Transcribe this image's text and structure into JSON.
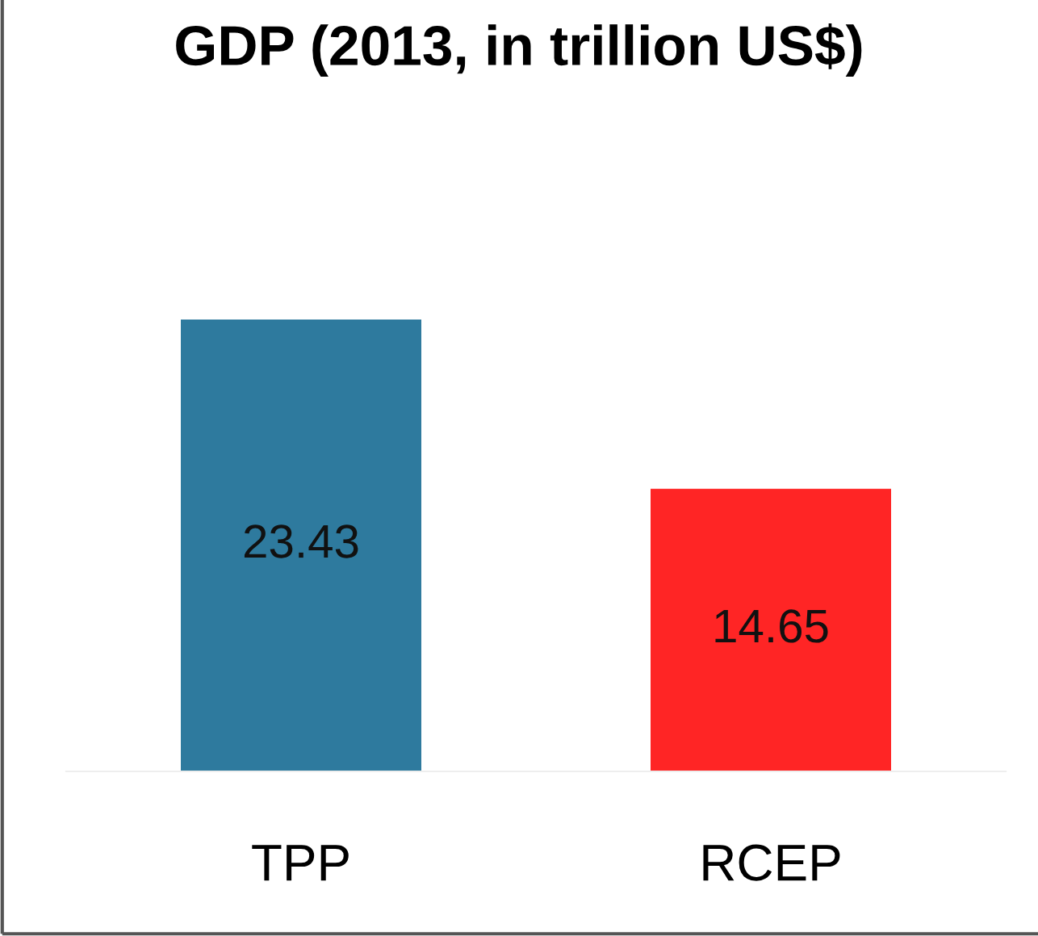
{
  "chart_data": {
    "type": "bar",
    "title": "GDP (2013, in trillion US$)",
    "categories": [
      "TPP",
      "RCEP"
    ],
    "values": [
      23.43,
      14.65
    ],
    "colors": [
      "#2e7a9e",
      "#ff2525"
    ],
    "data_labels": true,
    "grid": false,
    "legend": false
  }
}
